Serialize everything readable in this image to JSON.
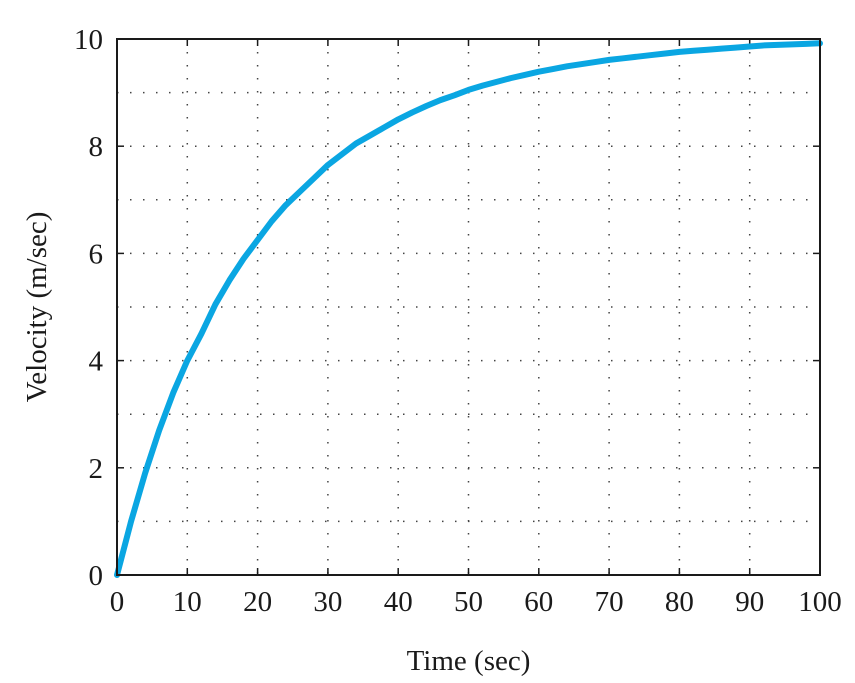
{
  "chart_data": {
    "type": "line",
    "title": "",
    "xlabel": "Time (sec)",
    "ylabel": "Velocity (m/sec)",
    "xlim": [
      0,
      100
    ],
    "ylim": [
      0,
      10
    ],
    "grid": true,
    "x_ticks": [
      "0",
      "10",
      "20",
      "30",
      "40",
      "50",
      "60",
      "70",
      "80",
      "90",
      "100"
    ],
    "y_ticks": [
      "0",
      "2",
      "4",
      "6",
      "8",
      "10"
    ],
    "x_tick_values": [
      0,
      10,
      20,
      30,
      40,
      50,
      60,
      70,
      80,
      90,
      100
    ],
    "y_tick_values": [
      0,
      2,
      4,
      6,
      8,
      10
    ],
    "series": [
      {
        "color": "#0aa6e2",
        "x": [
          0,
          2,
          4,
          6,
          8,
          10,
          12,
          14,
          16,
          18,
          20,
          22,
          24,
          26,
          28,
          30,
          32,
          34,
          36,
          38,
          40,
          42,
          44,
          46,
          48,
          50,
          52,
          54,
          56,
          58,
          60,
          62,
          64,
          66,
          68,
          70,
          72,
          74,
          76,
          78,
          80,
          82,
          84,
          86,
          88,
          90,
          92,
          94,
          96,
          98,
          100
        ],
        "y": [
          0,
          1.0,
          1.9,
          2.7,
          3.4,
          4.0,
          4.5,
          5.05,
          5.5,
          5.9,
          6.25,
          6.6,
          6.9,
          7.15,
          7.4,
          7.65,
          7.85,
          8.05,
          8.2,
          8.35,
          8.5,
          8.63,
          8.75,
          8.86,
          8.95,
          9.05,
          9.13,
          9.2,
          9.27,
          9.33,
          9.39,
          9.44,
          9.49,
          9.53,
          9.57,
          9.61,
          9.64,
          9.67,
          9.7,
          9.73,
          9.76,
          9.78,
          9.8,
          9.82,
          9.84,
          9.86,
          9.88,
          9.89,
          9.9,
          9.91,
          9.92
        ]
      }
    ]
  }
}
